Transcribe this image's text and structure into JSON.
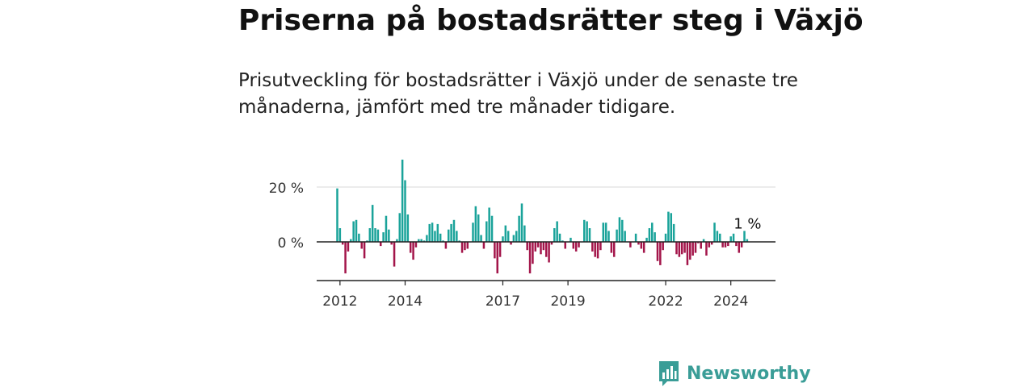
{
  "header": {
    "title": "Priserna på bostadsrätter steg i Växjö",
    "subtitle": "Prisutveckling för bostadsrätter i Växjö under de senaste tre månaderna, jämfört med tre månader tidigare."
  },
  "brand": {
    "name": "Newsworthy",
    "color": "#3a9d97"
  },
  "chart_data": {
    "type": "bar",
    "x_start": "2011-12",
    "x_step": "month",
    "y_unit": "%",
    "ylim": [
      -14,
      32
    ],
    "y_ticks": [
      0,
      20
    ],
    "y_tick_labels": [
      "0 %",
      "20 %"
    ],
    "x_ticks": [
      "2012",
      "2014",
      "2017",
      "2019",
      "2022",
      "2024"
    ],
    "last_value_label": "1 %",
    "positive_color": "#1aa39a",
    "negative_color": "#a3154a",
    "grid": true,
    "values": [
      19.5,
      5.0,
      -1.0,
      -11.5,
      -3.5,
      1.0,
      7.5,
      8.0,
      3.0,
      -2.5,
      -6.0,
      0.5,
      5.0,
      13.5,
      5.0,
      4.5,
      -1.5,
      3.5,
      9.5,
      4.5,
      -1.0,
      -9.0,
      1.0,
      10.5,
      30.0,
      22.5,
      10.0,
      -4.0,
      -6.5,
      -2.0,
      1.0,
      1.0,
      0.5,
      2.5,
      6.5,
      7.0,
      4.0,
      6.5,
      3.0,
      0.5,
      -2.5,
      4.5,
      6.5,
      8.0,
      4.0,
      0.5,
      -4.0,
      -3.0,
      -2.5,
      0.0,
      7.0,
      13.0,
      10.0,
      2.5,
      -2.5,
      7.5,
      12.5,
      9.5,
      -6.0,
      -11.5,
      -5.5,
      2.0,
      6.0,
      4.0,
      -1.0,
      2.5,
      4.0,
      9.5,
      14.0,
      6.0,
      -3.0,
      -11.5,
      -8.0,
      -3.5,
      -2.0,
      -4.5,
      -3.0,
      -5.5,
      -7.5,
      -1.0,
      5.0,
      7.5,
      3.0,
      0.5,
      -2.5,
      0.0,
      1.5,
      -2.5,
      -3.5,
      -2.0,
      0.0,
      8.0,
      7.5,
      5.0,
      -3.5,
      -5.5,
      -6.0,
      -3.0,
      7.0,
      7.0,
      4.0,
      -4.0,
      -5.5,
      4.5,
      9.0,
      8.0,
      4.0,
      0.0,
      -2.0,
      0.0,
      3.0,
      -1.0,
      -2.5,
      -4.0,
      1.5,
      5.0,
      7.0,
      3.5,
      -7.0,
      -8.5,
      -3.0,
      3.0,
      11.0,
      10.5,
      6.5,
      -4.5,
      -5.5,
      -4.5,
      -4.0,
      -8.5,
      -6.5,
      -5.0,
      -4.0,
      -0.5,
      -2.5,
      1.0,
      -5.0,
      -2.0,
      -1.0,
      7.0,
      4.0,
      3.0,
      -2.0,
      -2.0,
      -1.5,
      2.0,
      3.0,
      -1.5,
      -4.0,
      -2.0,
      4.0,
      1.0
    ]
  }
}
